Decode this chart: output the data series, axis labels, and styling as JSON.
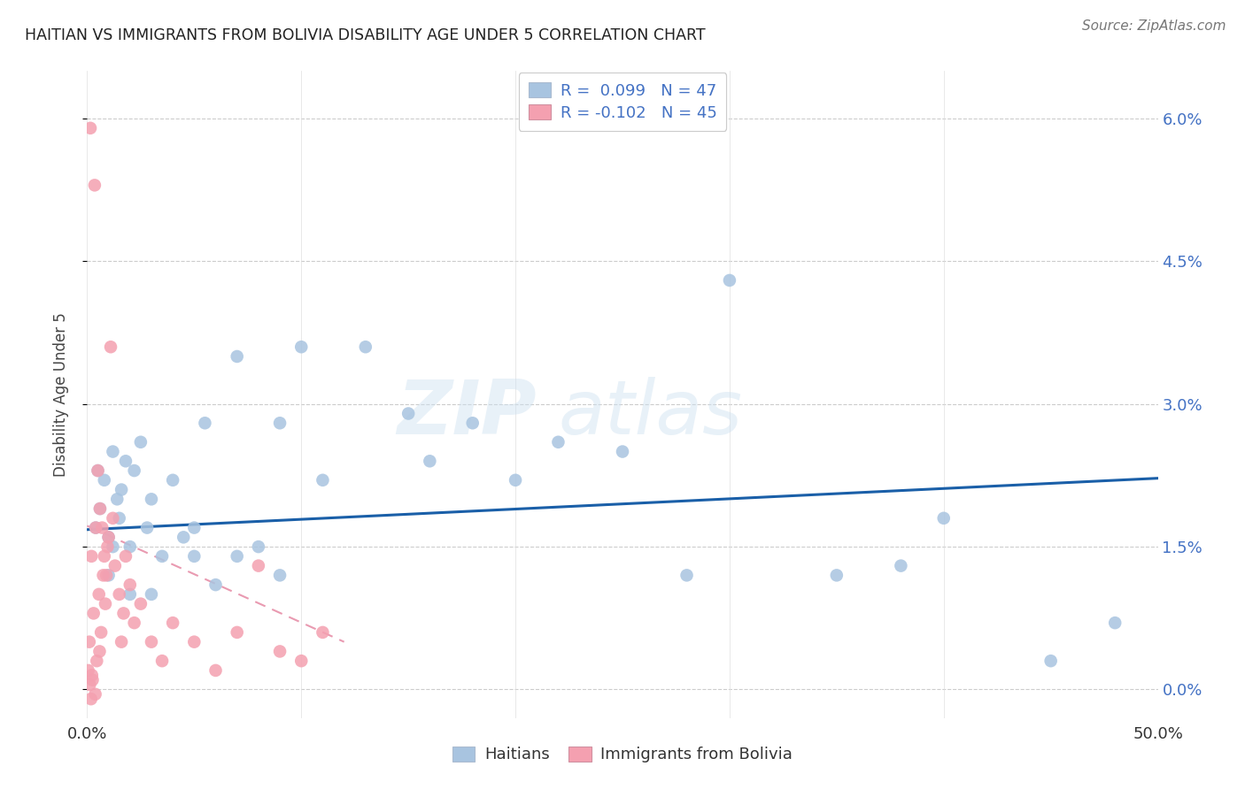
{
  "title": "HAITIAN VS IMMIGRANTS FROM BOLIVIA DISABILITY AGE UNDER 5 CORRELATION CHART",
  "source": "Source: ZipAtlas.com",
  "ylabel": "Disability Age Under 5",
  "r1": 0.099,
  "n1": 47,
  "r2": -0.102,
  "n2": 45,
  "xlim": [
    0.0,
    50.0
  ],
  "ylim": [
    -0.3,
    6.5
  ],
  "y_tick_vals": [
    0.0,
    1.5,
    3.0,
    4.5,
    6.0
  ],
  "y_tick_labels": [
    "0.0%",
    "1.5%",
    "3.0%",
    "4.5%",
    "6.0%"
  ],
  "x_tick_vals": [
    0.0,
    10.0,
    20.0,
    30.0,
    40.0,
    50.0
  ],
  "x_tick_labels": [
    "0.0%",
    "",
    "",
    "",
    "",
    "50.0%"
  ],
  "legend_label1": "Haitians",
  "legend_label2": "Immigrants from Bolivia",
  "color_blue": "#a8c4e0",
  "color_pink": "#f4a0b0",
  "line_color_blue": "#1a5fa8",
  "line_color_pink": "#e07090",
  "watermark_left": "ZIP",
  "watermark_right": "atlas",
  "blue_x": [
    0.4,
    0.5,
    0.6,
    0.8,
    1.0,
    1.2,
    1.4,
    1.5,
    1.6,
    1.8,
    2.0,
    2.2,
    2.5,
    2.8,
    3.0,
    3.5,
    4.0,
    4.5,
    5.0,
    5.5,
    6.0,
    7.0,
    8.0,
    9.0,
    10.0,
    11.0,
    13.0,
    15.0,
    16.0,
    18.0,
    20.0,
    22.0,
    25.0,
    28.0,
    30.0,
    35.0,
    38.0,
    40.0,
    45.0,
    48.0,
    1.0,
    1.2,
    2.0,
    3.0,
    5.0,
    7.0,
    9.0
  ],
  "blue_y": [
    1.7,
    2.3,
    1.9,
    2.2,
    1.6,
    2.5,
    2.0,
    1.8,
    2.1,
    2.4,
    1.5,
    2.3,
    2.6,
    1.7,
    2.0,
    1.4,
    2.2,
    1.6,
    1.7,
    2.8,
    1.1,
    3.5,
    1.5,
    2.8,
    3.6,
    2.2,
    3.6,
    2.9,
    2.4,
    2.8,
    2.2,
    2.6,
    2.5,
    1.2,
    4.3,
    1.2,
    1.3,
    1.8,
    0.3,
    0.7,
    1.2,
    1.5,
    1.0,
    1.0,
    1.4,
    1.4,
    1.2
  ],
  "pink_x": [
    0.05,
    0.1,
    0.15,
    0.2,
    0.25,
    0.3,
    0.35,
    0.4,
    0.45,
    0.5,
    0.55,
    0.6,
    0.65,
    0.7,
    0.75,
    0.8,
    0.85,
    0.9,
    0.95,
    1.0,
    1.1,
    1.2,
    1.3,
    1.5,
    1.6,
    1.7,
    1.8,
    2.0,
    2.2,
    2.5,
    3.0,
    3.5,
    4.0,
    5.0,
    6.0,
    7.0,
    8.0,
    9.0,
    10.0,
    11.0,
    0.12,
    0.18,
    0.22,
    0.38,
    0.58
  ],
  "pink_y": [
    0.2,
    0.5,
    5.9,
    1.4,
    0.1,
    0.8,
    5.3,
    1.7,
    0.3,
    2.3,
    1.0,
    1.9,
    0.6,
    1.7,
    1.2,
    1.4,
    0.9,
    1.2,
    1.5,
    1.6,
    3.6,
    1.8,
    1.3,
    1.0,
    0.5,
    0.8,
    1.4,
    1.1,
    0.7,
    0.9,
    0.5,
    0.3,
    0.7,
    0.5,
    0.2,
    0.6,
    1.3,
    0.4,
    0.3,
    0.6,
    0.05,
    -0.1,
    0.15,
    -0.05,
    0.4
  ],
  "blue_trend_x": [
    0.0,
    50.0
  ],
  "blue_trend_y": [
    1.68,
    2.22
  ],
  "pink_trend_x": [
    0.0,
    12.0
  ],
  "pink_trend_y": [
    1.72,
    0.5
  ]
}
